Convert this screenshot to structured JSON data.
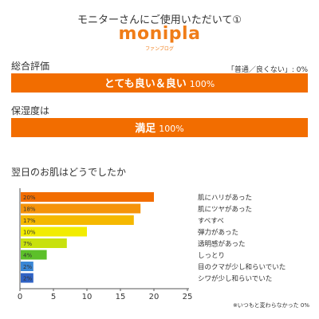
{
  "header": {
    "title": "モニターさんにご使用いただいて①",
    "logo": "monipla",
    "logo_sub": "ファンブログ"
  },
  "overall": {
    "label": "総合評価",
    "note": "「普通／良くない」: 0%",
    "bar_text": "とても良い＆良い",
    "bar_pct": "100%"
  },
  "moisture": {
    "label": "保湿度は",
    "bar_text": "満足",
    "bar_pct": "100%"
  },
  "chart_data": {
    "type": "bar",
    "orientation": "horizontal",
    "title": "翌日のお肌はどうでしたか",
    "categories": [
      "肌にハリがあった",
      "肌にツヤがあった",
      "すべすべ",
      "弾力があった",
      "透明感があった",
      "しっとり",
      "目のクマが少し和らいでいた",
      "シワが少し和らいでいた"
    ],
    "values": [
      20,
      18,
      17,
      10,
      7,
      4,
      2,
      2
    ],
    "labels": [
      "20%",
      "18%",
      "17%",
      "10%",
      "7%",
      "4%",
      "2%",
      "2%"
    ],
    "colors": [
      "#f26d00",
      "#f5930a",
      "#f5b800",
      "#f2ec00",
      "#c8e10e",
      "#5cc02a",
      "#3b87d6",
      "#2f62c4"
    ],
    "xlim": [
      0,
      25
    ],
    "xticks": [
      0,
      5,
      10,
      15,
      20,
      25
    ],
    "grid": false,
    "footnote": "※いつもと変わらなかった 0%"
  }
}
